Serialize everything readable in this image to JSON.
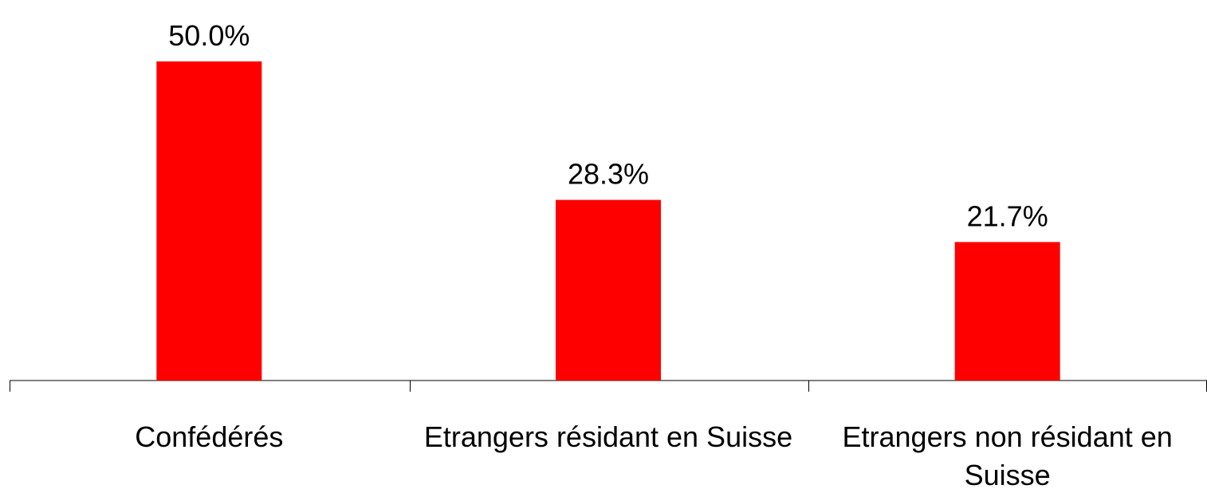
{
  "chart_data": {
    "type": "bar",
    "categories": [
      "Confédérés",
      "Etrangers résidant en Suisse",
      "Etrangers non résidant en Suisse"
    ],
    "values": [
      50.0,
      28.3,
      21.7
    ],
    "value_labels": [
      "50.0%",
      "28.3%",
      "21.7%"
    ],
    "color": "#ff0000"
  }
}
